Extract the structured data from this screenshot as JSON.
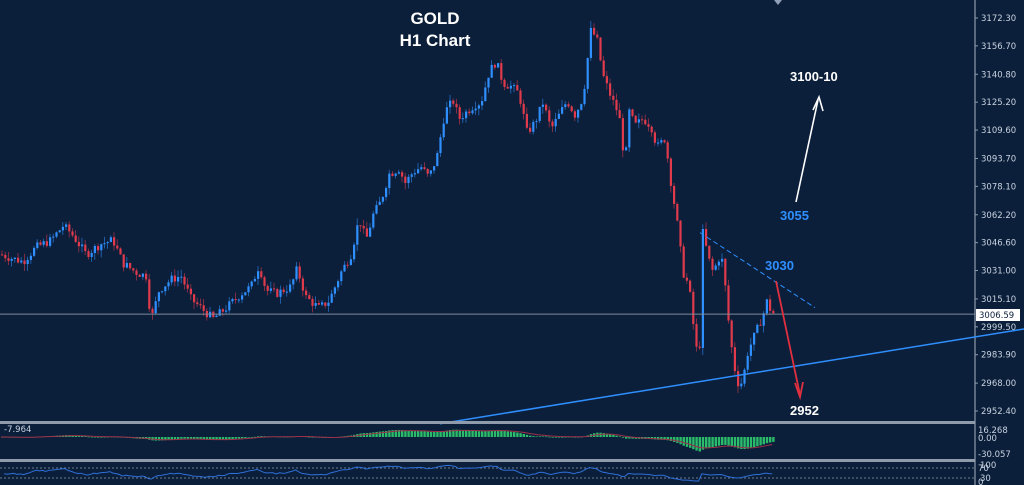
{
  "chart_data": {
    "type": "candlestick",
    "title": "GOLD",
    "subtitle": "H1 Chart",
    "timeframe": "H1",
    "symbol": "GOLD",
    "y_axis": {
      "ticks": [
        3172.3,
        3156.7,
        3140.8,
        3125.2,
        3109.6,
        3093.7,
        3078.1,
        3062.2,
        3046.6,
        3031.0,
        3015.1,
        2999.5,
        2983.9,
        2968.0,
        2952.4
      ],
      "tick_labels": [
        "3172.30",
        "3156.70",
        "3140.80",
        "3125.20",
        "3109.60",
        "3093.70",
        "3078.10",
        "3062.20",
        "3046.60",
        "3031.00",
        "3015.10",
        "2999.50",
        "2983.90",
        "2968.00",
        "2952.40"
      ],
      "ylim": [
        2945,
        3178
      ]
    },
    "current_price": 3006.59,
    "current_price_label": "3006.59",
    "price_path_waypoints": [
      [
        0,
        3040
      ],
      [
        10,
        3038
      ],
      [
        22,
        3036
      ],
      [
        35,
        3044
      ],
      [
        50,
        3048
      ],
      [
        62,
        3056
      ],
      [
        70,
        3052
      ],
      [
        85,
        3040
      ],
      [
        100,
        3046
      ],
      [
        112,
        3048
      ],
      [
        122,
        3035
      ],
      [
        135,
        3030
      ],
      [
        145,
        3028
      ],
      [
        150,
        3003
      ],
      [
        158,
        3020
      ],
      [
        170,
        3026
      ],
      [
        180,
        3028
      ],
      [
        190,
        3015
      ],
      [
        200,
        3010
      ],
      [
        212,
        3004
      ],
      [
        225,
        3010
      ],
      [
        240,
        3018
      ],
      [
        250,
        3022
      ],
      [
        258,
        3034
      ],
      [
        265,
        3020
      ],
      [
        275,
        3018
      ],
      [
        290,
        3022
      ],
      [
        296,
        3032
      ],
      [
        305,
        3016
      ],
      [
        318,
        3010
      ],
      [
        328,
        3014
      ],
      [
        340,
        3030
      ],
      [
        350,
        3040
      ],
      [
        358,
        3060
      ],
      [
        365,
        3048
      ],
      [
        372,
        3062
      ],
      [
        380,
        3070
      ],
      [
        388,
        3085
      ],
      [
        398,
        3088
      ],
      [
        404,
        3080
      ],
      [
        412,
        3086
      ],
      [
        420,
        3089
      ],
      [
        428,
        3083
      ],
      [
        436,
        3095
      ],
      [
        444,
        3120
      ],
      [
        452,
        3126
      ],
      [
        458,
        3116
      ],
      [
        466,
        3120
      ],
      [
        474,
        3124
      ],
      [
        480,
        3125
      ],
      [
        488,
        3142
      ],
      [
        495,
        3148
      ],
      [
        502,
        3136
      ],
      [
        510,
        3134
      ],
      [
        518,
        3130
      ],
      [
        526,
        3108
      ],
      [
        534,
        3114
      ],
      [
        542,
        3125
      ],
      [
        550,
        3110
      ],
      [
        558,
        3118
      ],
      [
        566,
        3126
      ],
      [
        574,
        3118
      ],
      [
        582,
        3128
      ],
      [
        590,
        3166
      ],
      [
        596,
        3160
      ],
      [
        602,
        3140
      ],
      [
        610,
        3128
      ],
      [
        618,
        3118
      ],
      [
        624,
        3090
      ],
      [
        628,
        3120
      ],
      [
        634,
        3112
      ],
      [
        642,
        3116
      ],
      [
        650,
        3112
      ],
      [
        656,
        3100
      ],
      [
        664,
        3105
      ],
      [
        670,
        3080
      ],
      [
        676,
        3058
      ],
      [
        682,
        3030
      ],
      [
        688,
        3022
      ],
      [
        694,
        2992
      ],
      [
        698,
        2978
      ],
      [
        702,
        3056
      ],
      [
        706,
        3040
      ],
      [
        712,
        3030
      ],
      [
        718,
        3038
      ],
      [
        722,
        3036
      ],
      [
        726,
        3010
      ],
      [
        730,
        2990
      ],
      [
        734,
        2975
      ],
      [
        738,
        2966
      ],
      [
        742,
        2970
      ],
      [
        746,
        2984
      ],
      [
        750,
        2990
      ],
      [
        756,
        2998
      ],
      [
        762,
        3006
      ],
      [
        766,
        3014
      ],
      [
        770,
        3008
      ],
      [
        775,
        3006
      ]
    ],
    "trendlines": [
      {
        "name": "rising-support",
        "color": "#2f8fff",
        "style": "solid",
        "points": [
          [
            440,
            2952
          ],
          [
            1024,
            3005
          ]
        ]
      },
      {
        "name": "falling-resistance",
        "color": "#2f8fff",
        "style": "dashed",
        "points": [
          [
            700,
            3055
          ],
          [
            815,
            3008
          ]
        ]
      },
      {
        "name": "current-price-line",
        "color": "#8a96a8",
        "style": "solid",
        "price": 3006.59
      }
    ],
    "annotations": [
      {
        "text": "3100-10",
        "color": "#ffffff",
        "type": "target"
      },
      {
        "text": "3055",
        "color": "#2f8fff",
        "type": "level"
      },
      {
        "text": "3030",
        "color": "#2f8fff",
        "type": "level"
      },
      {
        "text": "2952",
        "color": "#ffffff",
        "type": "target"
      }
    ],
    "arrows": [
      {
        "name": "bullish-scenario-arrow",
        "color": "#ffffff",
        "from": "3055",
        "to": "3100-10"
      },
      {
        "name": "bearish-scenario-arrow",
        "color": "#e03040",
        "from": "3030",
        "to": "2952"
      }
    ],
    "indicators": [
      {
        "name": "MACD",
        "labels": [
          "16.268",
          "0.00",
          "-30.057"
        ],
        "value_label": "-7.964",
        "histogram_color": "#2ecc71",
        "signal_color": "#a0304a"
      },
      {
        "name": "RSI",
        "labels": [
          "100",
          "70",
          "30",
          "0"
        ],
        "line_color": "#2f6fd8"
      }
    ],
    "colors": {
      "background": "#0b1f3a",
      "bull_candle": "#2f8fff",
      "bear_candle": "#e03a4c",
      "axis_text": "#c9d3e0",
      "panel_separator": "#8f9bab"
    },
    "grid": false
  },
  "header": {
    "title": "GOLD",
    "subtitle": "H1 Chart"
  },
  "annotations_text": {
    "target_up": "3100-10",
    "level_3055": "3055",
    "level_3030": "3030",
    "target_down": "2952"
  },
  "macd_panel": {
    "top_label": "16.268",
    "zero_label": "0.00",
    "bottom_label": "-30.057",
    "value_label": "-7.964"
  },
  "rsi_panel": {
    "label_100": "100",
    "label_70": "70",
    "label_30": "30",
    "label_0": "0"
  },
  "price_tag": "3006.59"
}
